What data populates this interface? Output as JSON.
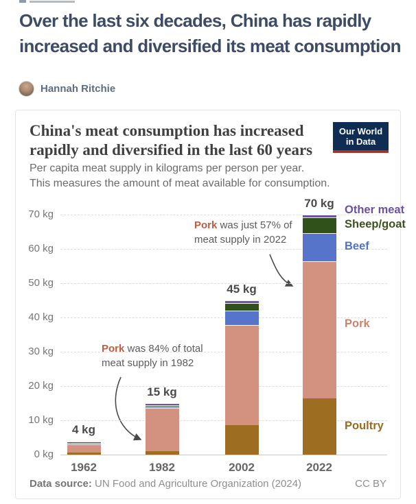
{
  "article": {
    "title": "Over the last six decades, China has rapidly increased and diversified its meat consumption",
    "author": "Hannah Ritchie"
  },
  "chart": {
    "title_lines": [
      "China's meat consumption has increased",
      "rapidly and diversified in the last 60 years"
    ],
    "subtitle_lines": [
      "Per capita meat supply in kilograms per person per year.",
      "This measures the amount of meat available for consumption."
    ],
    "logo": {
      "line1": "Our World",
      "line2": "in Data",
      "bg_color": "#0f2d52",
      "accent_color": "#a0352a"
    },
    "footer": {
      "source_label": "Data source:",
      "source_text": " UN Food and Agriculture Organization (2024)",
      "license": "CC BY"
    }
  },
  "chart_data": {
    "type": "bar",
    "stacked": true,
    "title": "China's meat consumption has increased rapidly and diversified in the last 60 years",
    "subtitle": "Per capita meat supply in kilograms per person per year. This measures the amount of meat available for consumption.",
    "categories": [
      "1962",
      "1982",
      "2002",
      "2022"
    ],
    "series": [
      {
        "name": "Poultry",
        "color": "#9d6d21",
        "label_color": "#9a6a1f",
        "values": [
          0.7,
          1.0,
          8.6,
          16.5
        ]
      },
      {
        "name": "Pork",
        "color": "#d2927f",
        "label_color": "#c9836c",
        "values": [
          2.4,
          12.6,
          29.2,
          40.0
        ]
      },
      {
        "name": "Beef",
        "color": "#5674c9",
        "label_color": "#4f71c9",
        "values": [
          0.35,
          0.4,
          4.2,
          8.2
        ]
      },
      {
        "name": "Sheep/goat",
        "color": "#31511b",
        "label_color": "#3c5220",
        "values": [
          0.25,
          0.5,
          2.2,
          4.5
        ]
      },
      {
        "name": "Other meat",
        "color": "#6d53a0",
        "label_color": "#6a51a1",
        "values": [
          0.3,
          0.5,
          0.8,
          0.8
        ]
      }
    ],
    "bar_total_labels": [
      "4 kg",
      "15 kg",
      "45 kg",
      "70 kg"
    ],
    "y_ticks": [
      "0 kg",
      "10 kg",
      "20 kg",
      "30 kg",
      "40 kg",
      "50 kg",
      "60 kg",
      "70 kg"
    ],
    "ylim": [
      0,
      70
    ],
    "grid": "horizontal dashed",
    "legend_position": "right of 2022 bar",
    "annotations": [
      {
        "highlight": "Pork",
        "rest": " was 84% of total meat supply in 1982",
        "target": "1982"
      },
      {
        "highlight": "Pork",
        "rest": " was just 57% of meat supply in 2022",
        "target": "2022"
      }
    ]
  }
}
